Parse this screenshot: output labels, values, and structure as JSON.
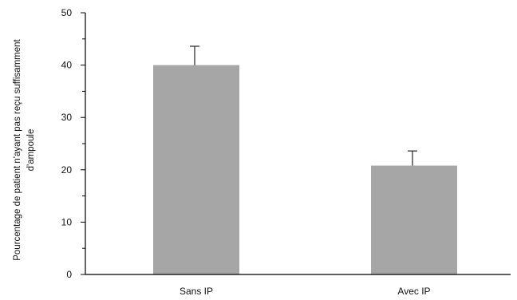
{
  "chart_data": {
    "type": "bar",
    "categories": [
      "Sans IP",
      "Avec IP"
    ],
    "values": [
      40,
      20.8
    ],
    "errors": [
      3.6,
      2.8
    ],
    "ylabel_lines": [
      "Pourcentage de patient n'ayant pas reçu suffisamment",
      "d'ampoule"
    ],
    "xlabel": "",
    "ylim": [
      0,
      50
    ],
    "yticks": [
      0,
      10,
      20,
      30,
      40,
      50
    ],
    "grid": false,
    "bar_color": "#a6a6a6",
    "axis_color": "#000000"
  }
}
